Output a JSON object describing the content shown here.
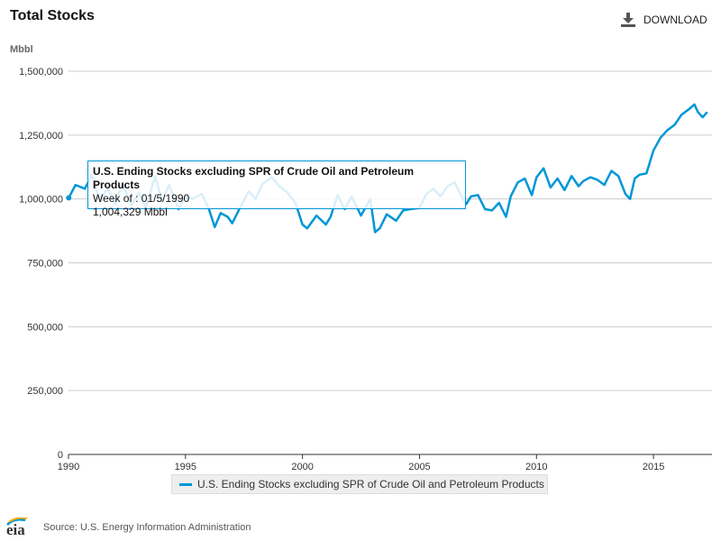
{
  "header": {
    "title": "Total Stocks",
    "download_label": "DOWNLOAD",
    "download_icon": "download-icon"
  },
  "tooltip": {
    "series": "U.S. Ending Stocks excluding SPR of Crude Oil and Petroleum Products",
    "week": "Week of : 01/5/1990",
    "value": "1,004,329 Mbbl"
  },
  "footer": {
    "logo_text": "eia",
    "source": "Source: U.S. Energy Information Administration"
  },
  "chart_data": {
    "type": "line",
    "title": "Total Stocks",
    "ylabel": "Mbbl",
    "xlabel": "",
    "xlim": [
      1990,
      2017.5
    ],
    "ylim": [
      0,
      1500000
    ],
    "x_ticks": [
      1990,
      1995,
      2000,
      2005,
      2010,
      2015
    ],
    "y_ticks": [
      0,
      250000,
      500000,
      750000,
      1000000,
      1250000,
      1500000
    ],
    "y_tick_labels": [
      "0",
      "250,000",
      "500,000",
      "750,000",
      "1,000,000",
      "1,250,000",
      "1,500,000"
    ],
    "grid": "horizontal",
    "legend": "bottom",
    "colors": {
      "series": "#0096d7",
      "grid": "#cccccc",
      "axis": "#333333"
    },
    "series": [
      {
        "name": "U.S. Ending Stocks excluding SPR of Crude Oil and Petroleum Products",
        "x": [
          1990.01,
          1990.3,
          1990.7,
          1991.0,
          1991.3,
          1991.7,
          1992.0,
          1992.3,
          1992.7,
          1993.0,
          1993.3,
          1993.7,
          1994.0,
          1994.3,
          1994.7,
          1995.0,
          1995.3,
          1995.7,
          1996.0,
          1996.25,
          1996.5,
          1996.8,
          1997.0,
          1997.3,
          1997.7,
          1998.0,
          1998.3,
          1998.7,
          1999.0,
          1999.3,
          1999.7,
          2000.0,
          2000.2,
          2000.6,
          2001.0,
          2001.2,
          2001.5,
          2001.8,
          2002.1,
          2002.5,
          2002.9,
          2003.1,
          2003.3,
          2003.6,
          2004.0,
          2004.3,
          2004.6,
          2005.0,
          2005.3,
          2005.6,
          2005.9,
          2006.2,
          2006.5,
          2006.8,
          2007.0,
          2007.2,
          2007.5,
          2007.8,
          2008.1,
          2008.4,
          2008.7,
          2008.9,
          2009.2,
          2009.5,
          2009.8,
          2010.0,
          2010.3,
          2010.6,
          2010.9,
          2011.2,
          2011.5,
          2011.8,
          2012.0,
          2012.3,
          2012.6,
          2012.9,
          2013.2,
          2013.5,
          2013.8,
          2014.0,
          2014.2,
          2014.4,
          2014.7,
          2015.0,
          2015.3,
          2015.6,
          2015.9,
          2016.2,
          2016.5,
          2016.75,
          2016.9,
          2017.1,
          2017.3
        ],
        "y": [
          1004329,
          1055000,
          1040000,
          1095000,
          1000000,
          1040000,
          980000,
          1060000,
          975000,
          1025000,
          965000,
          1090000,
          990000,
          1055000,
          960000,
          1010000,
          1000000,
          1020000,
          960000,
          890000,
          945000,
          930000,
          905000,
          960000,
          1030000,
          1000000,
          1060000,
          1085000,
          1050000,
          1030000,
          985000,
          900000,
          885000,
          935000,
          900000,
          930000,
          1015000,
          960000,
          1010000,
          935000,
          1000000,
          870000,
          885000,
          940000,
          915000,
          955000,
          960000,
          965000,
          1020000,
          1040000,
          1010000,
          1050000,
          1065000,
          1010000,
          980000,
          1010000,
          1015000,
          960000,
          955000,
          985000,
          930000,
          1010000,
          1065000,
          1080000,
          1015000,
          1085000,
          1120000,
          1045000,
          1080000,
          1035000,
          1090000,
          1050000,
          1070000,
          1085000,
          1075000,
          1055000,
          1110000,
          1090000,
          1020000,
          1000000,
          1080000,
          1095000,
          1100000,
          1190000,
          1240000,
          1270000,
          1290000,
          1330000,
          1350000,
          1370000,
          1340000,
          1320000,
          1340000
        ]
      }
    ]
  }
}
